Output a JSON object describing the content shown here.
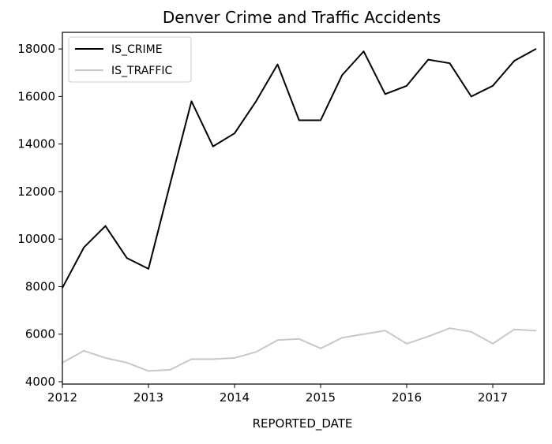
{
  "chart_data": {
    "type": "line",
    "title": "Denver Crime and Traffic Accidents",
    "xlabel": "REPORTED_DATE",
    "ylabel": "",
    "x": [
      "2012-Q1",
      "2012-Q2",
      "2012-Q3",
      "2012-Q4",
      "2013-Q1",
      "2013-Q2",
      "2013-Q3",
      "2013-Q4",
      "2014-Q1",
      "2014-Q2",
      "2014-Q3",
      "2014-Q4",
      "2015-Q1",
      "2015-Q2",
      "2015-Q3",
      "2015-Q4",
      "2016-Q1",
      "2016-Q2",
      "2016-Q3",
      "2016-Q4",
      "2017-Q1",
      "2017-Q2",
      "2017-Q3"
    ],
    "x_ticks": [
      "2012",
      "2013",
      "2014",
      "2015",
      "2016",
      "2017"
    ],
    "y_ticks": [
      "4000",
      "6000",
      "8000",
      "10000",
      "12000",
      "14000",
      "16000",
      "18000"
    ],
    "ylim": [
      3900,
      18700
    ],
    "grid": false,
    "legend_position": "top-left",
    "series": [
      {
        "name": "IS_CRIME",
        "color": "#000000",
        "values": [
          7950,
          9650,
          10550,
          9200,
          8750,
          12300,
          15800,
          13900,
          14450,
          15800,
          17350,
          15000,
          15000,
          16900,
          17900,
          16100,
          16450,
          17550,
          17400,
          16000,
          16450,
          17500,
          18000
        ]
      },
      {
        "name": "IS_TRAFFIC",
        "color": "#c8c8c8",
        "values": [
          4800,
          5300,
          5000,
          4800,
          4450,
          4500,
          4950,
          4950,
          5000,
          5250,
          5750,
          5800,
          5400,
          5850,
          6000,
          6150,
          5600,
          5900,
          6250,
          6100,
          5600,
          6200,
          6150
        ]
      }
    ]
  }
}
